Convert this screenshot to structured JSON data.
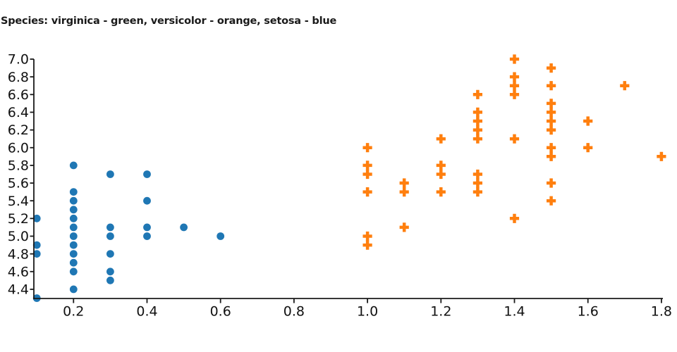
{
  "title": "Species: virginica - green, versicolor - orange, setosa - blue",
  "species_legend": [
    {
      "species": "virginica",
      "color_word": "green"
    },
    {
      "species": "versicolor",
      "color_word": "orange",
      "color_hex": "#ff7f0e"
    },
    {
      "species": "setosa",
      "color_word": "blue",
      "color_hex": "#1f77b4"
    }
  ],
  "chart_data": {
    "type": "scatter",
    "title": "Species: virginica - green, versicolor - orange, setosa - blue",
    "xlabel": "",
    "ylabel": "",
    "grid": false,
    "legend": "encoded in title text, no legend box drawn",
    "axis_color": "#1a1a1a",
    "x_ticks": [
      0.2,
      0.4,
      0.6,
      0.8,
      1.0,
      1.2,
      1.4,
      1.6,
      1.8
    ],
    "y_ticks": [
      4.4,
      4.6,
      4.8,
      5.0,
      5.2,
      5.4,
      5.6,
      5.8,
      6.0,
      6.2,
      6.4,
      6.6,
      6.8,
      7.0
    ],
    "xlim": [
      0.092,
      1.804
    ],
    "ylim": [
      4.296,
      7.0
    ],
    "series": [
      {
        "name": "setosa",
        "marker": "circle",
        "color": "#1f77b4",
        "points": [
          [
            0.1,
            4.3
          ],
          [
            0.1,
            4.8
          ],
          [
            0.1,
            4.9
          ],
          [
            0.1,
            5.2
          ],
          [
            0.2,
            4.4
          ],
          [
            0.2,
            4.6
          ],
          [
            0.2,
            4.7
          ],
          [
            0.2,
            4.8
          ],
          [
            0.2,
            4.9
          ],
          [
            0.2,
            5.0
          ],
          [
            0.2,
            5.1
          ],
          [
            0.2,
            5.2
          ],
          [
            0.2,
            5.3
          ],
          [
            0.2,
            5.4
          ],
          [
            0.2,
            5.5
          ],
          [
            0.2,
            5.8
          ],
          [
            0.3,
            4.5
          ],
          [
            0.3,
            4.6
          ],
          [
            0.3,
            4.8
          ],
          [
            0.3,
            5.0
          ],
          [
            0.3,
            5.1
          ],
          [
            0.3,
            5.7
          ],
          [
            0.4,
            5.0
          ],
          [
            0.4,
            5.1
          ],
          [
            0.4,
            5.4
          ],
          [
            0.4,
            5.7
          ],
          [
            0.5,
            5.1
          ],
          [
            0.6,
            5.0
          ]
        ]
      },
      {
        "name": "versicolor",
        "marker": "plus",
        "color": "#ff7f0e",
        "points": [
          [
            1.0,
            4.9
          ],
          [
            1.0,
            5.0
          ],
          [
            1.0,
            5.5
          ],
          [
            1.0,
            5.7
          ],
          [
            1.0,
            5.8
          ],
          [
            1.0,
            6.0
          ],
          [
            1.1,
            5.1
          ],
          [
            1.1,
            5.5
          ],
          [
            1.1,
            5.6
          ],
          [
            1.2,
            5.5
          ],
          [
            1.2,
            5.7
          ],
          [
            1.2,
            5.8
          ],
          [
            1.2,
            6.1
          ],
          [
            1.3,
            5.5
          ],
          [
            1.3,
            5.6
          ],
          [
            1.3,
            5.7
          ],
          [
            1.3,
            6.1
          ],
          [
            1.3,
            6.2
          ],
          [
            1.3,
            6.3
          ],
          [
            1.3,
            6.4
          ],
          [
            1.3,
            6.6
          ],
          [
            1.4,
            5.2
          ],
          [
            1.4,
            6.1
          ],
          [
            1.4,
            6.6
          ],
          [
            1.4,
            6.7
          ],
          [
            1.4,
            6.8
          ],
          [
            1.4,
            7.0
          ],
          [
            1.5,
            5.4
          ],
          [
            1.5,
            5.6
          ],
          [
            1.5,
            5.9
          ],
          [
            1.5,
            6.0
          ],
          [
            1.5,
            6.2
          ],
          [
            1.5,
            6.3
          ],
          [
            1.5,
            6.4
          ],
          [
            1.5,
            6.5
          ],
          [
            1.5,
            6.7
          ],
          [
            1.5,
            6.9
          ],
          [
            1.6,
            6.0
          ],
          [
            1.6,
            6.3
          ],
          [
            1.7,
            6.7
          ],
          [
            1.8,
            5.9
          ]
        ]
      },
      {
        "name": "virginica",
        "marker": "none",
        "color": "green",
        "points": []
      }
    ]
  }
}
